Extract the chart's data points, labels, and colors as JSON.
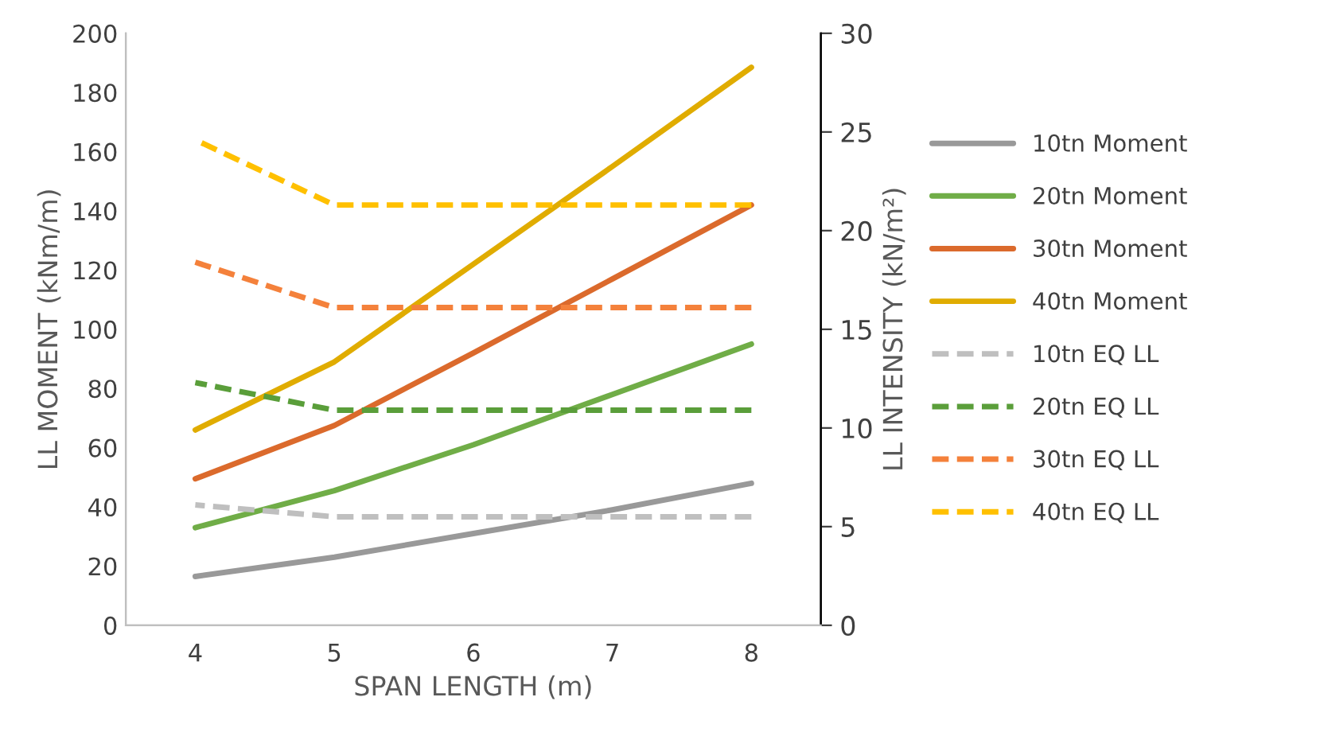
{
  "chart_data": {
    "type": "line",
    "xlabel": "SPAN LENGTH (m)",
    "ylabel": "LL MOMENT (kNm/m)",
    "y2label": "LL INTENSITY (kN/m²)",
    "categories": [
      "4",
      "5",
      "6",
      "7",
      "8"
    ],
    "series": [
      {
        "name": "10tn Moment",
        "color": "#999999",
        "line_style": "solid",
        "values": [
          16.5,
          23,
          31,
          39,
          48
        ]
      },
      {
        "name": "20tn Moment",
        "color": "#70ad47",
        "line_style": "solid",
        "values": [
          33,
          45.5,
          61,
          78,
          95
        ]
      },
      {
        "name": "30tn Moment",
        "color": "#db6a2c",
        "line_style": "solid",
        "values": [
          49.5,
          67.5,
          92,
          117,
          142
        ]
      },
      {
        "name": "40tn Moment",
        "color": "#e0ac00",
        "line_style": "solid",
        "values": [
          66,
          89,
          122,
          155,
          188.5
        ]
      },
      {
        "name": "10tn EQ LL",
        "color": "#bfbfbf",
        "line_style": "dashed",
        "axis": "y2",
        "values": [
          6.1,
          5.5,
          5.5,
          5.5,
          5.5
        ]
      },
      {
        "name": "20tn EQ LL",
        "color": "#5a9e3a",
        "line_style": "dashed",
        "axis": "y2",
        "values": [
          12.3,
          10.9,
          10.9,
          10.9,
          10.9
        ]
      },
      {
        "name": "30tn EQ LL",
        "color": "#f4813b",
        "line_style": "dashed",
        "axis": "y2",
        "values": [
          18.4,
          16.1,
          16.1,
          16.1,
          16.1
        ]
      },
      {
        "name": "40tn EQ LL",
        "color": "#ffc000",
        "line_style": "dashed",
        "axis": "y2",
        "values": [
          24.6,
          21.3,
          21.3,
          21.3,
          21.3
        ]
      }
    ],
    "ylim": [
      0,
      200
    ],
    "yticks": [
      0,
      20,
      40,
      60,
      80,
      100,
      120,
      140,
      160,
      180,
      200
    ],
    "y2lim": [
      0,
      30
    ],
    "y2ticks": [
      0,
      5,
      10,
      15,
      20,
      25,
      30
    ],
    "grid": false,
    "legend": "right",
    "marker": "none"
  }
}
